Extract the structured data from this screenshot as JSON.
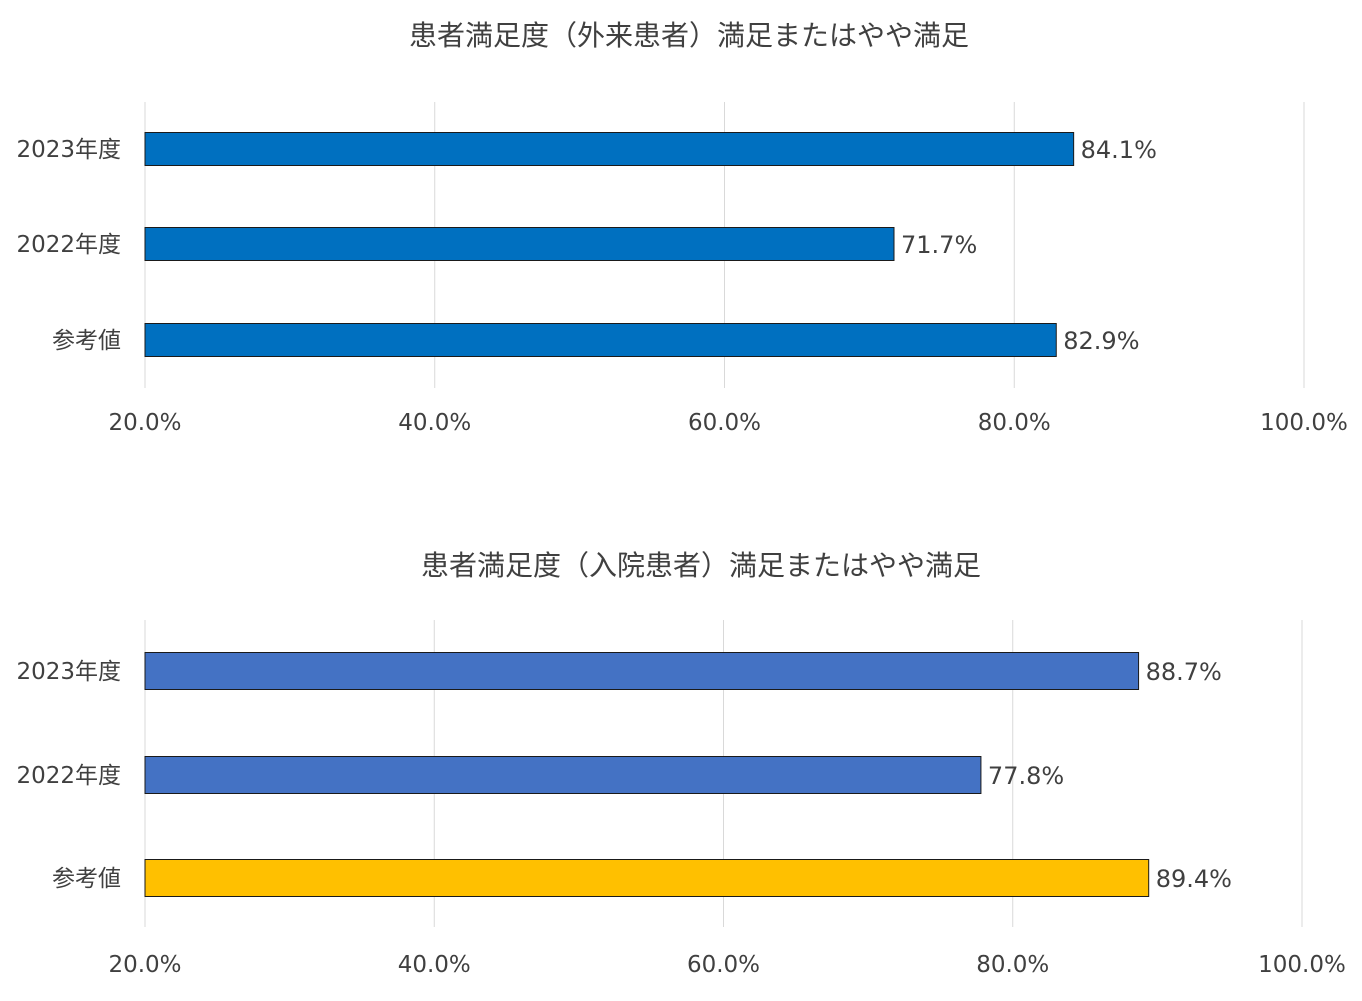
{
  "chart_data": [
    {
      "type": "bar",
      "orientation": "horizontal",
      "title": "患者満足度（外来患者）満足またはやや満足",
      "categories": [
        "2023年度",
        "2022年度",
        "参考値"
      ],
      "values": [
        84.1,
        71.7,
        82.9
      ],
      "value_labels": [
        "84.1%",
        "71.7%",
        "82.9%"
      ],
      "colors": [
        "#0070C0",
        "#0070C0",
        "#0070C0"
      ],
      "xlim": [
        20,
        100
      ],
      "xticks": [
        20,
        40,
        60,
        80,
        100
      ],
      "xtick_labels": [
        "20.0%",
        "40.0%",
        "60.0%",
        "80.0%",
        "100.0%"
      ],
      "grid": "vertical",
      "legend": "none"
    },
    {
      "type": "bar",
      "orientation": "horizontal",
      "title": "患者満足度（入院患者）満足またはやや満足",
      "categories": [
        "2023年度",
        "2022年度",
        "参考値"
      ],
      "values": [
        88.7,
        77.8,
        89.4
      ],
      "value_labels": [
        "88.7%",
        "77.8%",
        "89.4%"
      ],
      "colors": [
        "#4472C4",
        "#4472C4",
        "#FFC000"
      ],
      "xlim": [
        20,
        100
      ],
      "xticks": [
        20,
        40,
        60,
        80,
        100
      ],
      "xtick_labels": [
        "20.0%",
        "40.0%",
        "60.0%",
        "80.0%",
        "100.0%"
      ],
      "grid": "vertical",
      "legend": "none"
    }
  ]
}
